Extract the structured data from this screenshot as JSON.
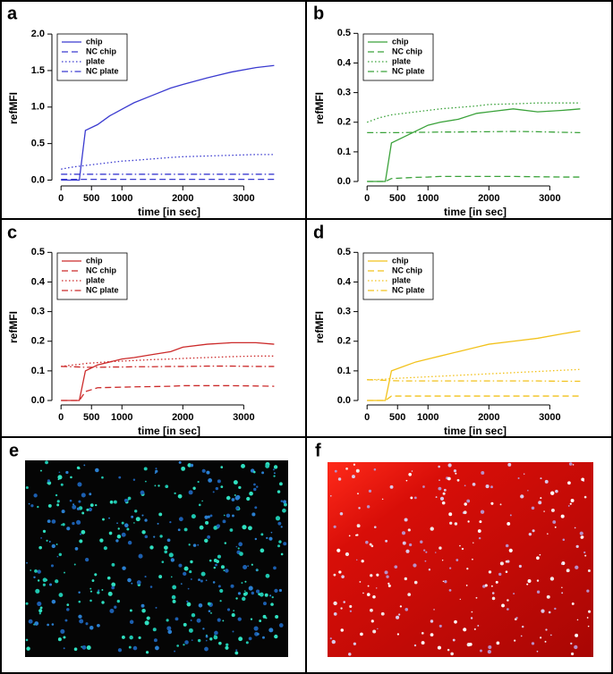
{
  "chart_data": [
    {
      "type": "line",
      "panel_label": "a",
      "x_label": "time [in sec]",
      "y_label": "refMFI",
      "x": [
        0,
        200,
        300,
        400,
        600,
        800,
        1000,
        1200,
        1500,
        1800,
        2000,
        2400,
        2800,
        3200,
        3500
      ],
      "xlim": [
        -150,
        3700
      ],
      "xticks": [
        0,
        500,
        1000,
        2000,
        3000
      ],
      "ylim": [
        -0.08,
        2.05
      ],
      "yticks": [
        {
          "value": 0,
          "label": "0.0"
        },
        0.5,
        {
          "value": 1,
          "label": "1.0"
        },
        1.5,
        {
          "value": 2,
          "label": "2.0"
        }
      ],
      "series": [
        {
          "name": "chip",
          "color": "#3b3bd0",
          "linestyle": "solid",
          "values": [
            0,
            0,
            0,
            0.68,
            0.76,
            0.88,
            0.97,
            1.06,
            1.16,
            1.26,
            1.31,
            1.4,
            1.48,
            1.54,
            1.57
          ]
        },
        {
          "name": "NC chip",
          "color": "#3b3bd0",
          "linestyle": "dashed",
          "values": [
            0.01,
            0.01,
            0.01,
            0.01,
            0.01,
            0.01,
            0.01,
            0.01,
            0.01,
            0.01,
            0.01,
            0.01,
            0.01,
            0.01,
            0.01
          ]
        },
        {
          "name": "plate",
          "color": "#3b3bd0",
          "linestyle": "dotted",
          "values": [
            0.15,
            0.18,
            0.19,
            0.2,
            0.22,
            0.24,
            0.26,
            0.27,
            0.29,
            0.31,
            0.32,
            0.33,
            0.34,
            0.35,
            0.35
          ]
        },
        {
          "name": "NC plate",
          "color": "#3b3bd0",
          "linestyle": "dashdot",
          "values": [
            0.08,
            0.08,
            0.08,
            0.08,
            0.08,
            0.08,
            0.08,
            0.08,
            0.08,
            0.08,
            0.08,
            0.08,
            0.08,
            0.08,
            0.08
          ]
        }
      ]
    },
    {
      "type": "line",
      "panel_label": "b",
      "x_label": "time [in sec]",
      "y_label": "refMFI",
      "x": [
        0,
        200,
        300,
        400,
        600,
        800,
        1000,
        1200,
        1500,
        1800,
        2000,
        2400,
        2800,
        3200,
        3500
      ],
      "xlim": [
        -150,
        3700
      ],
      "xticks": [
        0,
        500,
        1000,
        2000,
        3000
      ],
      "ylim": [
        -0.015,
        0.51
      ],
      "yticks": [
        {
          "value": 0,
          "label": "0.0"
        },
        0.1,
        0.2,
        0.3,
        0.4,
        0.5
      ],
      "series": [
        {
          "name": "chip",
          "color": "#3aa23a",
          "linestyle": "solid",
          "values": [
            0,
            0,
            0,
            0.13,
            0.15,
            0.17,
            0.19,
            0.2,
            0.21,
            0.23,
            0.235,
            0.245,
            0.235,
            0.24,
            0.245
          ]
        },
        {
          "name": "NC chip",
          "color": "#3aa23a",
          "linestyle": "dashed",
          "values": [
            0,
            0,
            0,
            0.01,
            0.012,
            0.014,
            0.015,
            0.017,
            0.017,
            0.017,
            0.017,
            0.017,
            0.016,
            0.015,
            0.015
          ]
        },
        {
          "name": "plate",
          "color": "#3aa23a",
          "linestyle": "dotted",
          "values": [
            0.2,
            0.215,
            0.22,
            0.225,
            0.23,
            0.235,
            0.24,
            0.245,
            0.25,
            0.255,
            0.26,
            0.262,
            0.265,
            0.265,
            0.265
          ]
        },
        {
          "name": "NC plate",
          "color": "#3aa23a",
          "linestyle": "dashdot",
          "values": [
            0.165,
            0.165,
            0.165,
            0.165,
            0.165,
            0.166,
            0.166,
            0.167,
            0.167,
            0.168,
            0.168,
            0.169,
            0.168,
            0.166,
            0.165
          ]
        }
      ]
    },
    {
      "type": "line",
      "panel_label": "c",
      "x_label": "time [in sec]",
      "y_label": "refMFI",
      "x": [
        0,
        200,
        300,
        400,
        600,
        800,
        1000,
        1200,
        1500,
        1800,
        2000,
        2400,
        2800,
        3200,
        3500
      ],
      "xlim": [
        -150,
        3700
      ],
      "xticks": [
        0,
        500,
        1000,
        2000,
        3000
      ],
      "ylim": [
        -0.015,
        0.51
      ],
      "yticks": [
        {
          "value": 0,
          "label": "0.0"
        },
        0.1,
        0.2,
        0.3,
        0.4,
        0.5
      ],
      "series": [
        {
          "name": "chip",
          "color": "#cc2a2a",
          "linestyle": "solid",
          "values": [
            0,
            0,
            0,
            0.1,
            0.12,
            0.13,
            0.14,
            0.145,
            0.155,
            0.165,
            0.18,
            0.19,
            0.195,
            0.195,
            0.19
          ]
        },
        {
          "name": "NC chip",
          "color": "#cc2a2a",
          "linestyle": "dashed",
          "values": [
            0,
            0,
            0,
            0.03,
            0.043,
            0.044,
            0.045,
            0.046,
            0.047,
            0.048,
            0.05,
            0.05,
            0.05,
            0.049,
            0.048
          ]
        },
        {
          "name": "plate",
          "color": "#cc2a2a",
          "linestyle": "dotted",
          "values": [
            0.115,
            0.12,
            0.122,
            0.125,
            0.128,
            0.131,
            0.133,
            0.135,
            0.138,
            0.14,
            0.142,
            0.145,
            0.148,
            0.15,
            0.15
          ]
        },
        {
          "name": "NC plate",
          "color": "#cc2a2a",
          "linestyle": "dashdot",
          "values": [
            0.115,
            0.114,
            0.113,
            0.112,
            0.112,
            0.113,
            0.113,
            0.114,
            0.114,
            0.115,
            0.115,
            0.116,
            0.116,
            0.115,
            0.115
          ]
        }
      ]
    },
    {
      "type": "line",
      "panel_label": "d",
      "x_label": "time [in sec]",
      "y_label": "refMFI",
      "x": [
        0,
        200,
        300,
        400,
        600,
        800,
        1000,
        1200,
        1500,
        1800,
        2000,
        2400,
        2800,
        3200,
        3500
      ],
      "xlim": [
        -150,
        3700
      ],
      "xticks": [
        0,
        500,
        1000,
        2000,
        3000
      ],
      "ylim": [
        -0.015,
        0.51
      ],
      "yticks": [
        {
          "value": 0,
          "label": "0.0"
        },
        0.1,
        0.2,
        0.3,
        0.4,
        0.5
      ],
      "series": [
        {
          "name": "chip",
          "color": "#f2c21c",
          "linestyle": "solid",
          "values": [
            0,
            0,
            0,
            0.1,
            0.115,
            0.13,
            0.14,
            0.15,
            0.165,
            0.18,
            0.19,
            0.2,
            0.21,
            0.225,
            0.235
          ]
        },
        {
          "name": "NC chip",
          "color": "#f2c21c",
          "linestyle": "dashed",
          "values": [
            0,
            0,
            0,
            0.015,
            0.015,
            0.015,
            0.015,
            0.015,
            0.015,
            0.015,
            0.015,
            0.015,
            0.015,
            0.015,
            0.015
          ]
        },
        {
          "name": "plate",
          "color": "#f2c21c",
          "linestyle": "dotted",
          "values": [
            0.07,
            0.071,
            0.072,
            0.074,
            0.076,
            0.078,
            0.08,
            0.082,
            0.085,
            0.088,
            0.09,
            0.094,
            0.098,
            0.102,
            0.105
          ]
        },
        {
          "name": "NC plate",
          "color": "#f2c21c",
          "linestyle": "dashdot",
          "values": [
            0.07,
            0.069,
            0.068,
            0.067,
            0.066,
            0.066,
            0.066,
            0.066,
            0.066,
            0.066,
            0.066,
            0.066,
            0.066,
            0.065,
            0.065
          ]
        }
      ]
    }
  ],
  "panels": [
    {
      "label": "e"
    },
    {
      "label": "f"
    }
  ]
}
